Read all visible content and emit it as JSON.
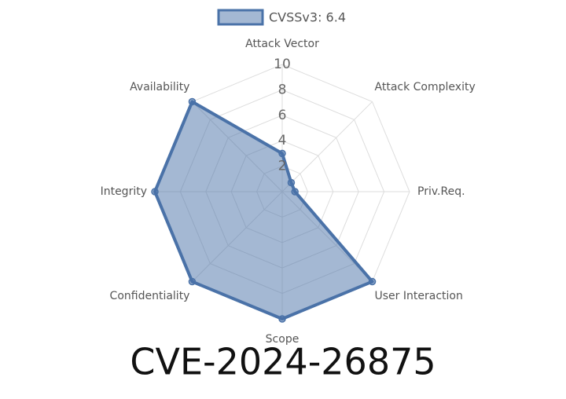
{
  "chart_data": {
    "type": "radar",
    "title": "CVE-2024-26875",
    "categories": [
      "Attack Vector",
      "Attack Complexity",
      "Priv.Req.",
      "User Interaction",
      "Scope",
      "Confidentiality",
      "Integrity",
      "Availability"
    ],
    "series": [
      {
        "name": "CVSSv3: 6.4",
        "color": "#4a72a8",
        "values": [
          3,
          1,
          1,
          10,
          10,
          10,
          10,
          10
        ]
      }
    ],
    "rlim": [
      0,
      10
    ],
    "rticks": [
      2,
      4,
      6,
      8,
      10
    ],
    "grid": true,
    "legend": "top"
  }
}
